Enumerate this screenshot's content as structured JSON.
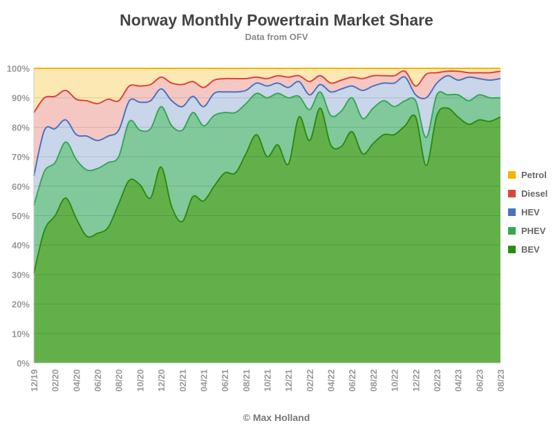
{
  "chart_data": {
    "type": "area",
    "stacked": true,
    "title": "Norway Monthly Powertrain Market Share",
    "subtitle": "Data from OFV",
    "credit": "© Max Holland",
    "xlabel": "",
    "ylabel": "",
    "ylim": [
      0,
      100
    ],
    "y_ticks": [
      "0%",
      "10%",
      "20%",
      "30%",
      "40%",
      "50%",
      "60%",
      "70%",
      "80%",
      "90%",
      "100%"
    ],
    "grid": true,
    "legend_position": "right",
    "categories": [
      "12/19",
      "01/20",
      "02/20",
      "03/20",
      "04/20",
      "05/20",
      "06/20",
      "07/20",
      "08/20",
      "09/20",
      "10/20",
      "11/20",
      "12/20",
      "01/21",
      "02/21",
      "03/21",
      "04/21",
      "05/21",
      "06/21",
      "07/21",
      "08/21",
      "09/21",
      "10/21",
      "11/21",
      "12/21",
      "01/22",
      "02/22",
      "03/22",
      "04/22",
      "05/22",
      "06/22",
      "07/22",
      "08/22",
      "09/22",
      "10/22",
      "11/22",
      "12/22",
      "01/23",
      "02/23",
      "03/23",
      "04/23",
      "05/23",
      "06/23",
      "07/23",
      "08/23"
    ],
    "x_tick_labels": [
      "12/19",
      "02/20",
      "04/20",
      "06/20",
      "08/20",
      "10/20",
      "12/20",
      "02/21",
      "04/21",
      "06/21",
      "08/21",
      "10/21",
      "12/21",
      "02/22",
      "04/22",
      "06/22",
      "08/22",
      "10/22",
      "12/22",
      "02/23",
      "04/23",
      "06/23",
      "08/23"
    ],
    "series": [
      {
        "name": "BEV",
        "color": "#2a8c0e",
        "fill": "#63b04b",
        "values": [
          30.5,
          45,
          50,
          56,
          49,
          43,
          44,
          46,
          54,
          62,
          60.5,
          56,
          66.5,
          53,
          48,
          56.5,
          55,
          60,
          64.5,
          64.5,
          71,
          77.5,
          70,
          74,
          67.5,
          83.5,
          75.5,
          86.5,
          74,
          73.5,
          78.5,
          71,
          74.5,
          77.5,
          77.5,
          80.5,
          83.5,
          67,
          84,
          86.5,
          83.5,
          81,
          82.5,
          82,
          83.5
        ]
      },
      {
        "name": "PHEV",
        "color": "#34a853",
        "fill": "#81c99b",
        "values": [
          23,
          20,
          18,
          19,
          20,
          22.5,
          22,
          22,
          16,
          20,
          18.5,
          23.5,
          20.5,
          27.5,
          31,
          28.5,
          25.5,
          24,
          20.5,
          20.5,
          17,
          14,
          20,
          17.5,
          22.5,
          7,
          10.5,
          5.5,
          10,
          12,
          11.5,
          12,
          12,
          11.5,
          9.5,
          8.5,
          5.5,
          9.5,
          7,
          4.5,
          7.5,
          8,
          8.5,
          8,
          6.5
        ]
      },
      {
        "name": "HEV",
        "color": "#4a72bd",
        "fill": "#c9d5e9",
        "values": [
          10,
          14,
          11.5,
          7.5,
          8.5,
          11.5,
          9.5,
          9,
          9,
          7,
          9.5,
          9.5,
          6,
          8.5,
          8,
          5.5,
          6.5,
          7.5,
          7,
          7,
          4.5,
          3.5,
          4,
          3.5,
          3.5,
          5,
          5,
          2.5,
          8,
          7.5,
          4,
          9.5,
          7.5,
          6,
          8,
          8,
          2,
          13.5,
          4,
          6.5,
          5,
          8,
          5.5,
          6,
          6.5
        ]
      },
      {
        "name": "Diesel",
        "color": "#db4437",
        "fill": "#f4c7c3",
        "values": [
          21.5,
          11,
          11,
          10,
          12,
          12,
          12.5,
          12.5,
          10,
          5,
          5.5,
          5.5,
          4,
          6,
          7.5,
          5,
          6.5,
          4.5,
          4.5,
          4.5,
          4,
          2,
          2.5,
          2.5,
          3.5,
          2,
          4.5,
          3,
          3,
          3,
          3,
          4,
          3.5,
          2.5,
          2.5,
          2,
          3,
          8,
          3.5,
          1.5,
          3,
          1.5,
          2,
          2.5,
          2.5
        ]
      },
      {
        "name": "Petrol",
        "color": "#f4b400",
        "fill": "#fce8b2",
        "values": [
          15,
          10,
          9.5,
          7.5,
          10.5,
          11,
          12,
          10.5,
          11,
          6,
          6,
          5.5,
          3,
          5,
          5.5,
          4.5,
          6.5,
          4,
          3.5,
          3.5,
          3.5,
          3,
          3.5,
          2.5,
          3,
          2.5,
          4.5,
          2.5,
          5,
          4,
          3,
          3.5,
          2.5,
          2.5,
          2.5,
          1,
          6,
          2,
          1.5,
          1,
          1,
          1.5,
          1.5,
          1.5,
          1
        ]
      }
    ]
  }
}
